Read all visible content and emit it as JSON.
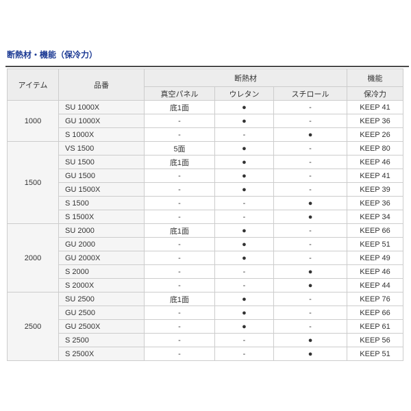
{
  "page": {
    "title": "断熱材・機能（保冷力）"
  },
  "table": {
    "header": {
      "item": "アイテム",
      "part_no": "品番",
      "insulation_group": "断熱材",
      "function_group": "機能",
      "sub": [
        "真空パネル",
        "ウレタン",
        "スチロール",
        "保冷力"
      ]
    },
    "symbols": {
      "present": "●",
      "absent": "-"
    },
    "groups": [
      {
        "item": "1000",
        "rows": [
          {
            "model": "SU 1000X",
            "vacuum": "底1面",
            "urethane": "●",
            "styrol": "-",
            "keep": "KEEP 41"
          },
          {
            "model": "GU 1000X",
            "vacuum": "-",
            "urethane": "●",
            "styrol": "-",
            "keep": "KEEP 36"
          },
          {
            "model": "S 1000X",
            "vacuum": "-",
            "urethane": "-",
            "styrol": "●",
            "keep": "KEEP 26"
          }
        ]
      },
      {
        "item": "1500",
        "rows": [
          {
            "model": "VS 1500",
            "vacuum": "5面",
            "urethane": "●",
            "styrol": "-",
            "keep": "KEEP 80"
          },
          {
            "model": "SU 1500",
            "vacuum": "底1面",
            "urethane": "●",
            "styrol": "-",
            "keep": "KEEP 46"
          },
          {
            "model": "GU 1500",
            "vacuum": "-",
            "urethane": "●",
            "styrol": "-",
            "keep": "KEEP 41"
          },
          {
            "model": "GU 1500X",
            "vacuum": "-",
            "urethane": "●",
            "styrol": "-",
            "keep": "KEEP 39"
          },
          {
            "model": "S 1500",
            "vacuum": "-",
            "urethane": "-",
            "styrol": "●",
            "keep": "KEEP 36"
          },
          {
            "model": "S 1500X",
            "vacuum": "-",
            "urethane": "-",
            "styrol": "●",
            "keep": "KEEP 34"
          }
        ]
      },
      {
        "item": "2000",
        "rows": [
          {
            "model": "SU 2000",
            "vacuum": "底1面",
            "urethane": "●",
            "styrol": "-",
            "keep": "KEEP 66"
          },
          {
            "model": "GU 2000",
            "vacuum": "-",
            "urethane": "●",
            "styrol": "-",
            "keep": "KEEP 51"
          },
          {
            "model": "GU 2000X",
            "vacuum": "-",
            "urethane": "●",
            "styrol": "-",
            "keep": "KEEP 49"
          },
          {
            "model": "S 2000",
            "vacuum": "-",
            "urethane": "-",
            "styrol": "●",
            "keep": "KEEP 46"
          },
          {
            "model": "S 2000X",
            "vacuum": "-",
            "urethane": "-",
            "styrol": "●",
            "keep": "KEEP 44"
          }
        ]
      },
      {
        "item": "2500",
        "rows": [
          {
            "model": "SU 2500",
            "vacuum": "底1面",
            "urethane": "●",
            "styrol": "-",
            "keep": "KEEP 76"
          },
          {
            "model": "GU 2500",
            "vacuum": "-",
            "urethane": "●",
            "styrol": "-",
            "keep": "KEEP 66"
          },
          {
            "model": "GU 2500X",
            "vacuum": "-",
            "urethane": "●",
            "styrol": "-",
            "keep": "KEEP 61"
          },
          {
            "model": "S 2500",
            "vacuum": "-",
            "urethane": "-",
            "styrol": "●",
            "keep": "KEEP 56"
          },
          {
            "model": "S 2500X",
            "vacuum": "-",
            "urethane": "-",
            "styrol": "●",
            "keep": "KEEP 51"
          }
        ]
      }
    ]
  },
  "colors": {
    "title": "#1c3a94",
    "rule": "#4a4a4a",
    "border": "#cccccc",
    "header_bg": "#ededed",
    "row_label_bg": "#f5f5f5",
    "text": "#333333"
  }
}
